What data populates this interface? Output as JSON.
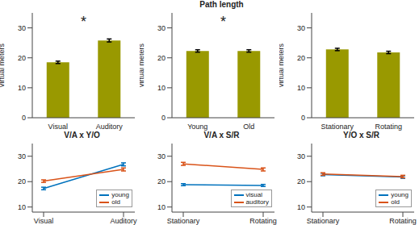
{
  "chart_data": [
    {
      "type": "bar",
      "categories": [
        "Visual",
        "Auditory"
      ],
      "values": [
        18.5,
        25.8
      ],
      "errors": [
        0.4,
        0.5
      ],
      "color": "#999900",
      "y_label": "virtual meters",
      "ylim": [
        0,
        35
      ],
      "yticks": [
        0,
        10,
        20,
        30
      ],
      "grid": false,
      "annotation": "*"
    },
    {
      "type": "bar",
      "title": "Path length",
      "categories": [
        "Young",
        "Old"
      ],
      "values": [
        22.3,
        22.3
      ],
      "errors": [
        0.4,
        0.4
      ],
      "color": "#999900",
      "y_label": "virtual meters",
      "ylim": [
        0,
        35
      ],
      "yticks": [
        0,
        10,
        20,
        30
      ],
      "grid": false,
      "annotation": "*"
    },
    {
      "type": "bar",
      "categories": [
        "Stationary",
        "Rotating"
      ],
      "values": [
        22.8,
        21.8
      ],
      "errors": [
        0.4,
        0.4
      ],
      "color": "#999900",
      "y_label": "virtual meters",
      "ylim": [
        0,
        35
      ],
      "yticks": [
        0,
        10,
        20,
        30
      ],
      "grid": false
    },
    {
      "type": "line",
      "title": "V/A x Y/O",
      "categories": [
        "Visual",
        "Auditory"
      ],
      "series": [
        {
          "name": "young",
          "color": "#0072bd",
          "values": [
            17.3,
            26.8
          ],
          "errors": [
            0.5,
            0.6
          ]
        },
        {
          "name": "old",
          "color": "#d95319",
          "values": [
            20.2,
            24.8
          ],
          "errors": [
            0.5,
            0.6
          ]
        }
      ],
      "ylim": [
        8,
        35
      ],
      "yticks": [
        10,
        20,
        30
      ],
      "grid": false,
      "legend": "lower right"
    },
    {
      "type": "line",
      "title": "V/A x S/R",
      "categories": [
        "Stationary",
        "Rotating"
      ],
      "series": [
        {
          "name": "visual",
          "color": "#0072bd",
          "values": [
            18.8,
            18.5
          ],
          "errors": [
            0.4,
            0.4
          ]
        },
        {
          "name": "auditory",
          "color": "#d95319",
          "values": [
            27.0,
            24.8
          ],
          "errors": [
            0.6,
            0.6
          ]
        }
      ],
      "ylim": [
        8,
        35
      ],
      "yticks": [
        10,
        20,
        30
      ],
      "grid": false,
      "legend": "lower right"
    },
    {
      "type": "line",
      "title": "Y/O x S/R",
      "categories": [
        "Stationary",
        "Rotating"
      ],
      "series": [
        {
          "name": "young",
          "color": "#0072bd",
          "values": [
            22.8,
            21.8
          ],
          "errors": [
            0.5,
            0.5
          ]
        },
        {
          "name": "old",
          "color": "#d95319",
          "values": [
            23.0,
            22.0
          ],
          "errors": [
            0.5,
            0.5
          ]
        }
      ],
      "ylim": [
        8,
        35
      ],
      "yticks": [
        10,
        20,
        30
      ],
      "grid": false,
      "legend": "lower right"
    }
  ]
}
